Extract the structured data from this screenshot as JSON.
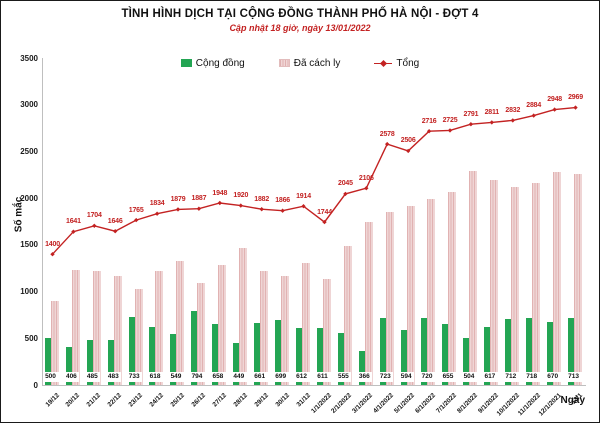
{
  "header": {
    "title": "TÌNH HÌNH DỊCH TẠI CỘNG ĐỒNG THÀNH PHỐ HÀ NỘI - ĐỢT 4",
    "subtitle": "Cập nhật 18 giờ, ngày 13/01/2022"
  },
  "colors": {
    "community_green": "#23a553",
    "quarantine_pink": "#eccaca",
    "total_red": "#c32222",
    "axis_gray": "#bfbfbf"
  },
  "chart_data": {
    "type": "bar",
    "title": "TÌNH HÌNH DỊCH TẠI CỘNG ĐỒNG THÀNH PHỐ HÀ NỘI - ĐỢT 4",
    "subtitle": "Cập nhật 18 giờ, ngày 13/01/2022",
    "xlabel": "Ngày",
    "ylabel": "Số mắc",
    "ylim": [
      0,
      3500
    ],
    "ytick_step": 500,
    "grid": false,
    "legend_position": "top",
    "categories": [
      "19/12",
      "20/12",
      "21/12",
      "22/12",
      "23/12",
      "24/12",
      "25/12",
      "26/12",
      "27/12",
      "28/12",
      "29/12",
      "30/12",
      "31/12",
      "1/1/2022",
      "2/1/2022",
      "3/1/2022",
      "4/1/2022",
      "5/1/2022",
      "6/1/2022",
      "7/1/2022",
      "8/1/2022",
      "9/1/2022",
      "10/1/2022",
      "11/1/2022",
      "12/1/2021",
      "13/1"
    ],
    "series": [
      {
        "name": "Cộng đồng",
        "type": "bar",
        "color": "#23a553",
        "values": [
          500,
          406,
          485,
          483,
          733,
          618,
          549,
          794,
          658,
          449,
          661,
          699,
          612,
          611,
          555,
          366,
          723,
          594,
          720,
          655,
          504,
          617,
          712,
          718,
          670,
          713
        ]
      },
      {
        "name": "Đã cách ly",
        "type": "bar",
        "color": "#eccaca",
        "values": [
          900,
          1235,
          1219,
          1163,
          1032,
          1216,
          1330,
          1093,
          1290,
          1471,
          1221,
          1167,
          1302,
          1133,
          1490,
          1740,
          1855,
          1912,
          1996,
          2070,
          2287,
          2194,
          2120,
          2166,
          2278,
          2256
        ]
      },
      {
        "name": "Tổng",
        "type": "line",
        "color": "#c32222",
        "values": [
          1400,
          1641,
          1704,
          1646,
          1765,
          1834,
          1879,
          1887,
          1948,
          1920,
          1882,
          1866,
          1914,
          1744,
          2045,
          2106,
          2578,
          2506,
          2716,
          2725,
          2791,
          2811,
          2832,
          2884,
          2948,
          2969
        ]
      }
    ]
  }
}
